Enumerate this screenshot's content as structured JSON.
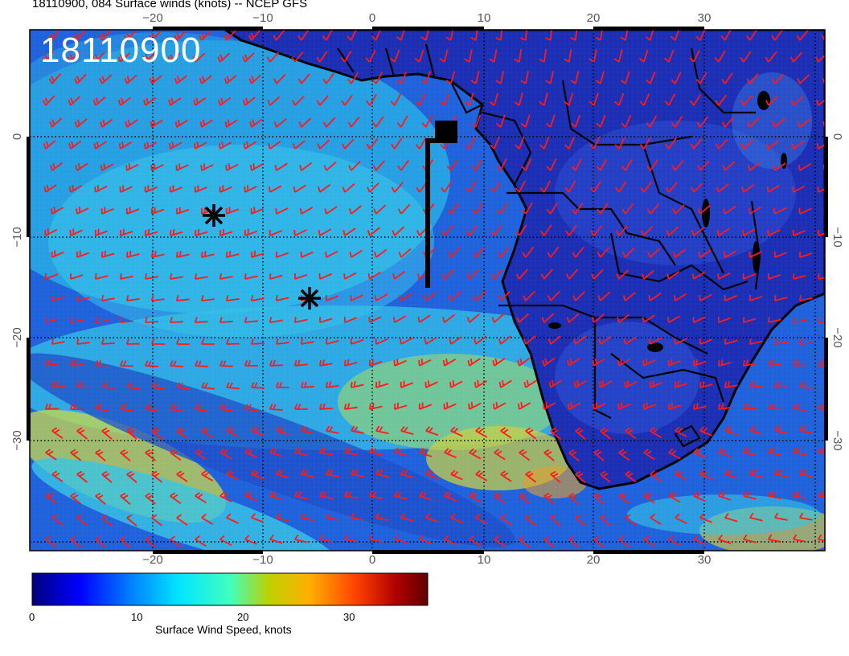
{
  "title": "18110900, 084 Surface winds (knots) -- NCEP GFS",
  "stamp": "18110900",
  "axes": {
    "lon_ticks": [
      "−20",
      "−10",
      "0",
      "10",
      "20",
      "30"
    ],
    "lat_ticks": [
      "0",
      "−10",
      "−20",
      "−30"
    ]
  },
  "colorbar": {
    "label": "Surface Wind Speed, knots",
    "ticks": [
      "0",
      "10",
      "20",
      "30"
    ],
    "colors": [
      "#00007f",
      "#0000ff",
      "#0080ff",
      "#00e5ff",
      "#40ffbf",
      "#c0d000",
      "#ffb000",
      "#ff4000",
      "#b00000",
      "#600000"
    ]
  },
  "colors": {
    "ocean_base": "#1e5fd8",
    "land": "#1a2fb0",
    "barb": "#ff1a1a",
    "coast": "#000000"
  },
  "markers": [
    "asterisk-icon",
    "asterisk-icon",
    "square-marker"
  ]
}
